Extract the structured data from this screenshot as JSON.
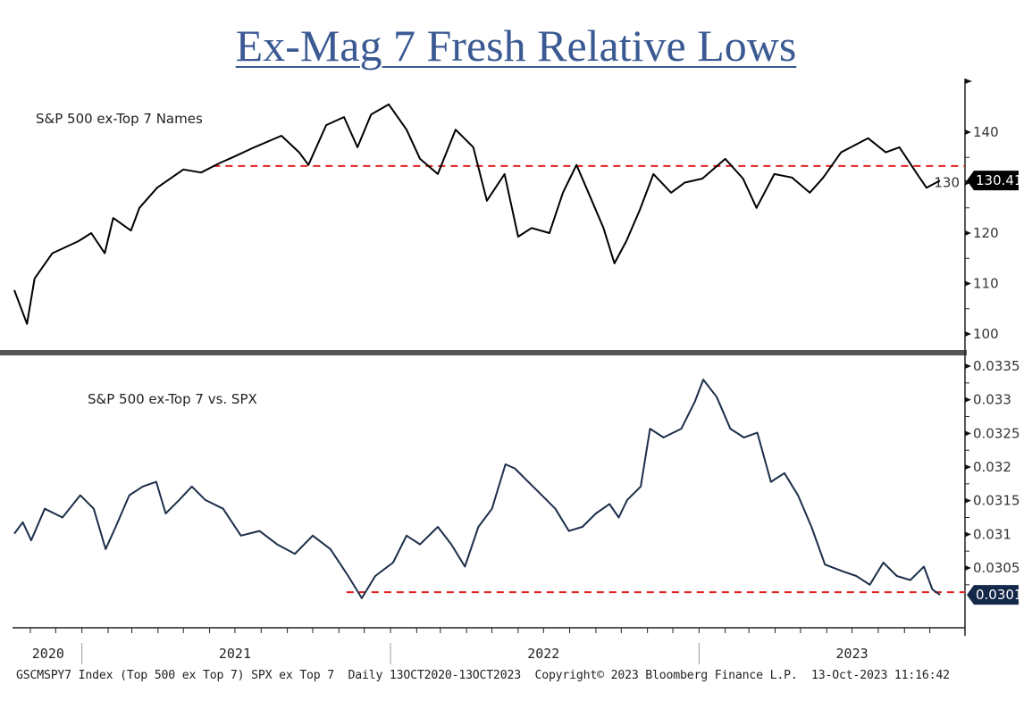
{
  "title": "Ex-Mag 7 Fresh Relative Lows",
  "footer": "GSCMSPY7 Index (Top 500 ex Top 7) SPX ex Top 7  Daily 13OCT2020-13OCT2023  Copyright© 2023 Bloomberg Finance L.P.  13-Oct-2023 11:16:42",
  "chart_data": [
    {
      "type": "line",
      "label": "S&P 500 ex-Top 7 Names",
      "xlim": [
        "2020-10-13",
        "2023-10-13"
      ],
      "ylim": [
        98,
        148
      ],
      "yticks": [
        "140",
        "130",
        "120",
        "110",
        "100"
      ],
      "last_value_label": "130.41",
      "reference_line": 133.3,
      "line_color": "#000000",
      "reference_color": "#e02020",
      "x": [
        "2020-10-13",
        "2020-10-28",
        "2020-11-06",
        "2020-11-27",
        "2020-12-28",
        "2021-01-12",
        "2021-01-28",
        "2021-02-07",
        "2021-02-28",
        "2021-03-10",
        "2021-03-31",
        "2021-05-01",
        "2021-05-22",
        "2021-06-12",
        "2021-06-28",
        "2021-07-24",
        "2021-08-25",
        "2021-09-15",
        "2021-09-26",
        "2021-10-17",
        "2021-11-07",
        "2021-11-23",
        "2021-12-09",
        "2021-12-30",
        "2022-01-20",
        "2022-02-05",
        "2022-02-26",
        "2022-03-19",
        "2022-04-09",
        "2022-04-25",
        "2022-05-16",
        "2022-06-01",
        "2022-06-17",
        "2022-07-08",
        "2022-07-24",
        "2022-08-09",
        "2022-08-25",
        "2022-09-10",
        "2022-09-23",
        "2022-10-07",
        "2022-10-23",
        "2022-11-08",
        "2022-11-29",
        "2022-12-15",
        "2023-01-05",
        "2023-02-01",
        "2023-02-22",
        "2023-03-10",
        "2023-03-31",
        "2023-04-21",
        "2023-05-12",
        "2023-05-28",
        "2023-06-18",
        "2023-07-20",
        "2023-08-10",
        "2023-08-26",
        "2023-09-16",
        "2023-09-27",
        "2023-10-13"
      ],
      "y": [
        108.7,
        102,
        111,
        116,
        118.4,
        120,
        116,
        123,
        120.5,
        125,
        129,
        132.6,
        132,
        133.8,
        135,
        137,
        139.3,
        136,
        133.5,
        141.4,
        143,
        137,
        143.5,
        145.5,
        140.5,
        134.7,
        131.7,
        140.5,
        137,
        126.4,
        131.7,
        119.3,
        121,
        120,
        128,
        133.5,
        127.3,
        121,
        114,
        118.4,
        124.6,
        131.7,
        128,
        130,
        130.8,
        134.7,
        130.8,
        125,
        131.7,
        131,
        128,
        131,
        136,
        138.8,
        136,
        137,
        131.7,
        129,
        130.41
      ]
    },
    {
      "type": "line",
      "label": "S&P 500 ex-Top 7 vs. SPX",
      "xlim": [
        "2020-10-13",
        "2023-10-13"
      ],
      "ylim": [
        0.0297,
        0.0337
      ],
      "yticks": [
        "0.0335",
        "0.033",
        "0.0325",
        "0.032",
        "0.0315",
        "0.031",
        "0.0305"
      ],
      "last_value_label": "0.0301",
      "reference_line": 0.03014,
      "line_color": "#1c2e4a",
      "reference_color": "#e02020",
      "x_tick_labels": [
        "2020",
        "2021",
        "2022",
        "2023"
      ],
      "x": [
        "2020-10-13",
        "2020-10-23",
        "2020-11-02",
        "2020-11-18",
        "2020-12-09",
        "2020-12-30",
        "2021-01-15",
        "2021-01-29",
        "2021-02-10",
        "2021-02-26",
        "2021-03-14",
        "2021-03-30",
        "2021-04-10",
        "2021-04-26",
        "2021-05-11",
        "2021-05-27",
        "2021-06-17",
        "2021-07-08",
        "2021-07-30",
        "2021-08-20",
        "2021-09-10",
        "2021-10-01",
        "2021-10-22",
        "2021-11-12",
        "2021-11-28",
        "2021-12-14",
        "2022-01-04",
        "2022-01-20",
        "2022-02-05",
        "2022-02-26",
        "2022-03-14",
        "2022-03-30",
        "2022-04-15",
        "2022-05-01",
        "2022-05-17",
        "2022-05-28",
        "2022-06-13",
        "2022-06-29",
        "2022-07-15",
        "2022-07-31",
        "2022-08-16",
        "2022-09-01",
        "2022-09-17",
        "2022-09-28",
        "2022-10-08",
        "2022-10-24",
        "2022-11-04",
        "2022-11-20",
        "2022-12-11",
        "2022-12-27",
        "2023-01-06",
        "2023-01-22",
        "2023-02-07",
        "2023-02-23",
        "2023-03-11",
        "2023-03-27",
        "2023-04-12",
        "2023-04-28",
        "2023-05-14",
        "2023-05-30",
        "2023-06-20",
        "2023-07-06",
        "2023-07-22",
        "2023-08-07",
        "2023-08-23",
        "2023-09-08",
        "2023-09-24",
        "2023-10-04",
        "2023-10-13"
      ],
      "y": [
        0.03101,
        0.03118,
        0.03091,
        0.03138,
        0.03125,
        0.03158,
        0.03138,
        0.03078,
        0.03111,
        0.03158,
        0.03171,
        0.03178,
        0.03131,
        0.03151,
        0.03171,
        0.03151,
        0.03138,
        0.03098,
        0.03105,
        0.03085,
        0.03071,
        0.03098,
        0.03078,
        0.03038,
        0.03005,
        0.03038,
        0.03058,
        0.03098,
        0.03085,
        0.03111,
        0.03085,
        0.03052,
        0.03111,
        0.03138,
        0.03204,
        0.03198,
        0.03178,
        0.03158,
        0.03138,
        0.03105,
        0.03111,
        0.03131,
        0.03145,
        0.03125,
        0.03151,
        0.03171,
        0.03257,
        0.03244,
        0.03257,
        0.03297,
        0.0333,
        0.03304,
        0.03257,
        0.03244,
        0.03251,
        0.03178,
        0.03191,
        0.03158,
        0.03111,
        0.03055,
        0.03045,
        0.03038,
        0.03025,
        0.03058,
        0.03038,
        0.03032,
        0.03052,
        0.03018,
        0.0301
      ]
    }
  ]
}
